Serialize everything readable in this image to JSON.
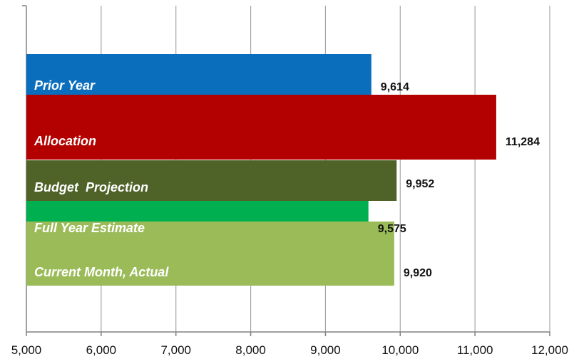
{
  "chart_data": {
    "type": "bar",
    "orientation": "horizontal",
    "xlim": [
      5000,
      12000
    ],
    "grid": true,
    "x_ticks": [
      "5,000",
      "6,000",
      "7,000",
      "8,000",
      "9,000",
      "10,000",
      "11,000",
      "12,000"
    ],
    "x_tick_values": [
      5000,
      6000,
      7000,
      8000,
      9000,
      10000,
      11000,
      12000
    ],
    "bars": [
      {
        "category": "Prior Year",
        "value": 9614,
        "value_label": "9,614",
        "color": "#0a6ebd"
      },
      {
        "category": "Allocation",
        "value": 11284,
        "value_label": "11,284",
        "color": "#b30000"
      },
      {
        "category": "Budget  Projection",
        "value": 9952,
        "value_label": "9,952",
        "color": "#4f6228"
      },
      {
        "category": "Full Year Estimate",
        "value": 9575,
        "value_label": "9,575",
        "color": "#00b050"
      },
      {
        "category": "Current Month, Actual",
        "value": 9920,
        "value_label": "9,920",
        "color": "#9bbb59"
      }
    ],
    "gridline_color": "#a6a6a6",
    "axis_color": "#808080"
  }
}
